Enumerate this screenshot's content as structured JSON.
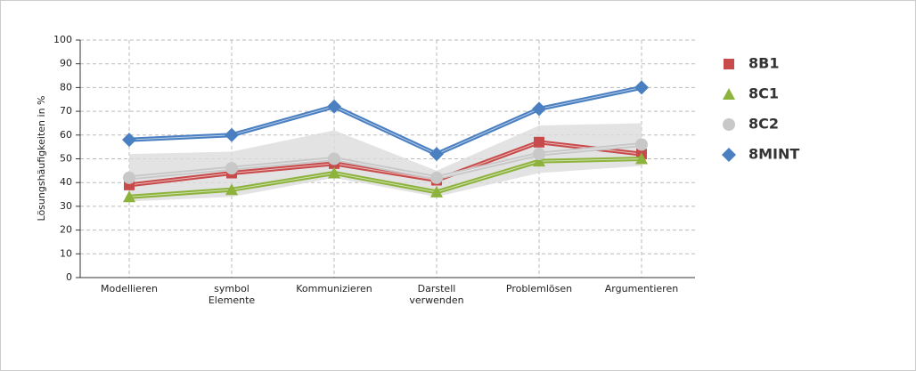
{
  "chart_data": {
    "type": "line",
    "y_label": "Lösungshäufigkeiten in %",
    "categories": [
      "Modellieren",
      "symbol\nElemente",
      "Kommunizieren",
      "Darstell\nverwenden",
      "Problemlösen",
      "Argumentieren"
    ],
    "range_band": {
      "color": "#dcdcdc",
      "upper": [
        52,
        53,
        62,
        45,
        64,
        65
      ],
      "lower": [
        32,
        34,
        42,
        34,
        44,
        47
      ]
    },
    "series": [
      {
        "name": "8B1",
        "color": "#c84b4b",
        "marker": "square",
        "values": [
          39,
          44,
          48,
          41,
          57,
          52
        ]
      },
      {
        "name": "8C1",
        "color": "#8db33c",
        "marker": "triangle",
        "values": [
          34,
          37,
          44,
          36,
          49,
          50
        ]
      },
      {
        "name": "8C2",
        "color": "#c8c8c8",
        "marker": "circle",
        "values": [
          42,
          46,
          50,
          42,
          52,
          56
        ]
      },
      {
        "name": "8MINT",
        "color": "#4a7fc1",
        "marker": "diamond",
        "values": [
          58,
          60,
          72,
          52,
          71,
          80
        ]
      }
    ],
    "ylim": [
      0,
      100
    ],
    "yticks": [
      0,
      10,
      20,
      30,
      40,
      50,
      60,
      70,
      80,
      90,
      100
    ],
    "grid": true,
    "legend": "right"
  }
}
